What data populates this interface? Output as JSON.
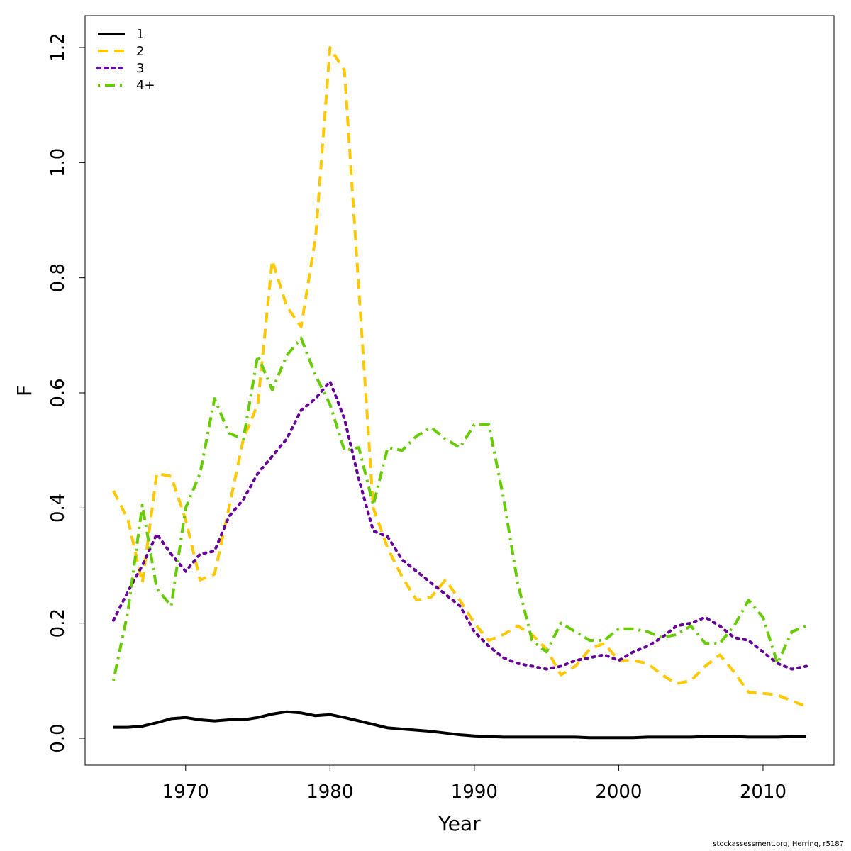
{
  "chart_data": {
    "type": "line",
    "title": "",
    "xlabel": "Year",
    "ylabel": "F",
    "xlim": [
      1965,
      2013
    ],
    "ylim": [
      0.0,
      1.2
    ],
    "xticks": [
      1970,
      1980,
      1990,
      2000,
      2010
    ],
    "yticks": [
      0.0,
      0.2,
      0.4,
      0.6,
      0.8,
      1.0,
      1.2
    ],
    "ytick_labels": [
      "0.0",
      "0.2",
      "0.4",
      "0.6",
      "0.8",
      "1.0",
      "1.2"
    ],
    "legend_position": "top-left",
    "grid": false,
    "x": [
      1965,
      1966,
      1967,
      1968,
      1969,
      1970,
      1971,
      1972,
      1973,
      1974,
      1975,
      1976,
      1977,
      1978,
      1979,
      1980,
      1981,
      1982,
      1983,
      1984,
      1985,
      1986,
      1987,
      1988,
      1989,
      1990,
      1991,
      1992,
      1993,
      1994,
      1995,
      1996,
      1997,
      1998,
      1999,
      2000,
      2001,
      2002,
      2003,
      2004,
      2005,
      2006,
      2007,
      2008,
      2009,
      2010,
      2011,
      2012,
      2013
    ],
    "series": [
      {
        "name": "1",
        "color": "#000000",
        "dash": "solid",
        "values": [
          0.019,
          0.019,
          0.021,
          0.027,
          0.034,
          0.036,
          0.032,
          0.03,
          0.032,
          0.032,
          0.036,
          0.042,
          0.046,
          0.044,
          0.039,
          0.041,
          0.036,
          0.03,
          0.024,
          0.018,
          0.016,
          0.014,
          0.012,
          0.009,
          0.006,
          0.004,
          0.003,
          0.002,
          0.002,
          0.002,
          0.002,
          0.002,
          0.002,
          0.001,
          0.001,
          0.001,
          0.001,
          0.002,
          0.002,
          0.002,
          0.002,
          0.003,
          0.003,
          0.003,
          0.002,
          0.002,
          0.002,
          0.003,
          0.003
        ]
      },
      {
        "name": "2",
        "color": "#ffc800",
        "dash": "dashed",
        "values": [
          0.43,
          0.38,
          0.27,
          0.46,
          0.455,
          0.38,
          0.275,
          0.285,
          0.4,
          0.52,
          0.58,
          0.83,
          0.75,
          0.715,
          0.87,
          1.2,
          1.16,
          0.78,
          0.4,
          0.33,
          0.28,
          0.24,
          0.245,
          0.275,
          0.24,
          0.2,
          0.17,
          0.18,
          0.195,
          0.18,
          0.155,
          0.11,
          0.125,
          0.155,
          0.165,
          0.135,
          0.135,
          0.13,
          0.11,
          0.095,
          0.1,
          0.125,
          0.145,
          0.115,
          0.08,
          0.078,
          0.075,
          0.065,
          0.055
        ]
      },
      {
        "name": "3",
        "color": "#660099",
        "dash": "dotted",
        "values": [
          0.205,
          0.255,
          0.3,
          0.355,
          0.32,
          0.29,
          0.32,
          0.325,
          0.385,
          0.415,
          0.46,
          0.49,
          0.52,
          0.57,
          0.59,
          0.62,
          0.555,
          0.45,
          0.36,
          0.35,
          0.31,
          0.29,
          0.27,
          0.25,
          0.23,
          0.185,
          0.16,
          0.14,
          0.13,
          0.125,
          0.12,
          0.125,
          0.135,
          0.14,
          0.145,
          0.135,
          0.15,
          0.16,
          0.175,
          0.195,
          0.2,
          0.21,
          0.195,
          0.175,
          0.17,
          0.15,
          0.13,
          0.12,
          0.125
        ]
      },
      {
        "name": "4+",
        "color": "#66cc00",
        "dash": "dashdot",
        "values": [
          0.1,
          0.22,
          0.405,
          0.26,
          0.23,
          0.4,
          0.46,
          0.59,
          0.53,
          0.52,
          0.665,
          0.605,
          0.665,
          0.695,
          0.63,
          0.58,
          0.5,
          0.505,
          0.405,
          0.505,
          0.5,
          0.525,
          0.54,
          0.52,
          0.505,
          0.545,
          0.545,
          0.42,
          0.27,
          0.17,
          0.15,
          0.2,
          0.185,
          0.17,
          0.17,
          0.19,
          0.19,
          0.185,
          0.175,
          0.18,
          0.195,
          0.165,
          0.165,
          0.195,
          0.24,
          0.21,
          0.13,
          0.185,
          0.195
        ]
      }
    ]
  },
  "credit": "stockassessment.org, Herring, r5187"
}
